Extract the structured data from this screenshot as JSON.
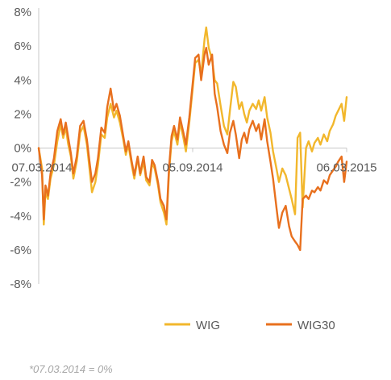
{
  "chart_data": {
    "type": "line",
    "title": "",
    "xlabel": "",
    "ylabel": "",
    "ylim": [
      -8,
      8
    ],
    "yticks": [
      -8,
      -6,
      -4,
      -2,
      0,
      2,
      4,
      6,
      8
    ],
    "ytick_format": "%",
    "x_range": [
      "2014-03-07",
      "2015-03-06"
    ],
    "xticks": [
      "07.03.2014",
      "05.09.2014",
      "06.03.2015"
    ],
    "grid": false,
    "legend": "bottom",
    "colors": {
      "WIG": "#f2b72c",
      "WIG30": "#e8701e",
      "axis": "#c8c8c8"
    },
    "series": [
      {
        "name": "WIG",
        "points": [
          [
            "2014-03-07",
            0.0
          ],
          [
            "2014-03-11",
            -1.2
          ],
          [
            "2014-03-13",
            -4.5
          ],
          [
            "2014-03-15",
            -2.6
          ],
          [
            "2014-03-18",
            -3.0
          ],
          [
            "2014-03-21",
            -1.8
          ],
          [
            "2014-03-25",
            -1.0
          ],
          [
            "2014-03-29",
            0.4
          ],
          [
            "2014-04-02",
            1.4
          ],
          [
            "2014-04-05",
            0.6
          ],
          [
            "2014-04-08",
            1.2
          ],
          [
            "2014-04-11",
            0.2
          ],
          [
            "2014-04-14",
            -0.5
          ],
          [
            "2014-04-17",
            -1.8
          ],
          [
            "2014-04-21",
            -0.8
          ],
          [
            "2014-04-25",
            0.9
          ],
          [
            "2014-04-29",
            1.3
          ],
          [
            "2014-05-03",
            0.2
          ],
          [
            "2014-05-06",
            -1.2
          ],
          [
            "2014-05-09",
            -2.6
          ],
          [
            "2014-05-13",
            -2.0
          ],
          [
            "2014-05-16",
            -1.0
          ],
          [
            "2014-05-20",
            0.8
          ],
          [
            "2014-05-24",
            0.6
          ],
          [
            "2014-05-27",
            1.8
          ],
          [
            "2014-05-31",
            2.6
          ],
          [
            "2014-06-04",
            1.8
          ],
          [
            "2014-06-07",
            2.2
          ],
          [
            "2014-06-11",
            1.5
          ],
          [
            "2014-06-15",
            0.5
          ],
          [
            "2014-06-18",
            -0.4
          ],
          [
            "2014-06-21",
            0.2
          ],
          [
            "2014-06-25",
            -1.0
          ],
          [
            "2014-06-28",
            -1.8
          ],
          [
            "2014-07-02",
            -0.6
          ],
          [
            "2014-07-05",
            -1.6
          ],
          [
            "2014-07-09",
            -0.8
          ],
          [
            "2014-07-12",
            -1.9
          ],
          [
            "2014-07-16",
            -2.2
          ],
          [
            "2014-07-19",
            -0.9
          ],
          [
            "2014-07-22",
            -1.2
          ],
          [
            "2014-07-26",
            -2.2
          ],
          [
            "2014-07-29",
            -3.2
          ],
          [
            "2014-08-02",
            -3.8
          ],
          [
            "2014-08-05",
            -4.5
          ],
          [
            "2014-08-08",
            -1.5
          ],
          [
            "2014-08-11",
            0.4
          ],
          [
            "2014-08-14",
            1.0
          ],
          [
            "2014-08-18",
            0.2
          ],
          [
            "2014-08-21",
            1.5
          ],
          [
            "2014-08-25",
            0.6
          ],
          [
            "2014-08-28",
            -0.2
          ],
          [
            "2014-09-01",
            1.5
          ],
          [
            "2014-09-05",
            3.5
          ],
          [
            "2014-09-08",
            5.0
          ],
          [
            "2014-09-12",
            5.2
          ],
          [
            "2014-09-15",
            4.3
          ],
          [
            "2014-09-19",
            6.4
          ],
          [
            "2014-09-21",
            7.1
          ],
          [
            "2014-09-24",
            5.9
          ],
          [
            "2014-09-28",
            5.2
          ],
          [
            "2014-10-01",
            4.0
          ],
          [
            "2014-10-04",
            3.8
          ],
          [
            "2014-10-08",
            2.5
          ],
          [
            "2014-10-12",
            1.3
          ],
          [
            "2014-10-16",
            0.8
          ],
          [
            "2014-10-19",
            2.2
          ],
          [
            "2014-10-23",
            3.9
          ],
          [
            "2014-10-26",
            3.6
          ],
          [
            "2014-10-30",
            2.3
          ],
          [
            "2014-11-02",
            2.7
          ],
          [
            "2014-11-05",
            2.0
          ],
          [
            "2014-11-08",
            1.5
          ],
          [
            "2014-11-11",
            2.2
          ],
          [
            "2014-11-15",
            2.6
          ],
          [
            "2014-11-19",
            2.3
          ],
          [
            "2014-11-22",
            2.8
          ],
          [
            "2014-11-25",
            2.2
          ],
          [
            "2014-11-29",
            3.0
          ],
          [
            "2014-12-02",
            1.8
          ],
          [
            "2014-12-06",
            0.9
          ],
          [
            "2014-12-09",
            -0.2
          ],
          [
            "2014-12-13",
            -1.2
          ],
          [
            "2014-12-16",
            -2.0
          ],
          [
            "2014-12-20",
            -1.2
          ],
          [
            "2014-12-24",
            -1.6
          ],
          [
            "2014-12-28",
            -2.4
          ],
          [
            "2014-12-31",
            -3.0
          ],
          [
            "2015-01-04",
            -3.9
          ],
          [
            "2015-01-07",
            0.6
          ],
          [
            "2015-01-10",
            0.9
          ],
          [
            "2015-01-13",
            -3.5
          ],
          [
            "2015-01-17",
            0.0
          ],
          [
            "2015-01-20",
            0.4
          ],
          [
            "2015-01-24",
            -0.2
          ],
          [
            "2015-01-27",
            0.3
          ],
          [
            "2015-01-31",
            0.6
          ],
          [
            "2015-02-03",
            0.2
          ],
          [
            "2015-02-07",
            0.8
          ],
          [
            "2015-02-11",
            0.4
          ],
          [
            "2015-02-14",
            1.0
          ],
          [
            "2015-02-18",
            1.4
          ],
          [
            "2015-02-21",
            1.9
          ],
          [
            "2015-02-24",
            2.2
          ],
          [
            "2015-02-28",
            2.6
          ],
          [
            "2015-03-03",
            1.6
          ],
          [
            "2015-03-06",
            3.0
          ]
        ]
      },
      {
        "name": "WIG30",
        "points": [
          [
            "2014-03-07",
            0.0
          ],
          [
            "2014-03-11",
            -1.6
          ],
          [
            "2014-03-13",
            -4.2
          ],
          [
            "2014-03-15",
            -2.2
          ],
          [
            "2014-03-18",
            -2.8
          ],
          [
            "2014-03-21",
            -1.5
          ],
          [
            "2014-03-25",
            -0.6
          ],
          [
            "2014-03-29",
            1.0
          ],
          [
            "2014-04-02",
            1.7
          ],
          [
            "2014-04-05",
            0.8
          ],
          [
            "2014-04-08",
            1.5
          ],
          [
            "2014-04-11",
            0.6
          ],
          [
            "2014-04-14",
            -0.3
          ],
          [
            "2014-04-17",
            -1.5
          ],
          [
            "2014-04-21",
            -0.5
          ],
          [
            "2014-04-25",
            1.3
          ],
          [
            "2014-04-29",
            1.6
          ],
          [
            "2014-05-03",
            0.5
          ],
          [
            "2014-05-06",
            -0.8
          ],
          [
            "2014-05-09",
            -2.0
          ],
          [
            "2014-05-13",
            -1.5
          ],
          [
            "2014-05-16",
            -0.6
          ],
          [
            "2014-05-20",
            1.2
          ],
          [
            "2014-05-24",
            0.9
          ],
          [
            "2014-05-27",
            2.4
          ],
          [
            "2014-05-31",
            3.5
          ],
          [
            "2014-06-04",
            2.2
          ],
          [
            "2014-06-07",
            2.6
          ],
          [
            "2014-06-11",
            1.9
          ],
          [
            "2014-06-15",
            0.7
          ],
          [
            "2014-06-18",
            -0.2
          ],
          [
            "2014-06-21",
            0.4
          ],
          [
            "2014-06-25",
            -0.8
          ],
          [
            "2014-06-28",
            -1.6
          ],
          [
            "2014-07-02",
            -0.5
          ],
          [
            "2014-07-05",
            -1.5
          ],
          [
            "2014-07-09",
            -0.5
          ],
          [
            "2014-07-12",
            -1.7
          ],
          [
            "2014-07-16",
            -2.0
          ],
          [
            "2014-07-19",
            -0.7
          ],
          [
            "2014-07-22",
            -1.0
          ],
          [
            "2014-07-26",
            -2.0
          ],
          [
            "2014-07-29",
            -3.0
          ],
          [
            "2014-08-02",
            -3.4
          ],
          [
            "2014-08-05",
            -4.2
          ],
          [
            "2014-08-08",
            -1.2
          ],
          [
            "2014-08-11",
            0.7
          ],
          [
            "2014-08-14",
            1.3
          ],
          [
            "2014-08-18",
            0.5
          ],
          [
            "2014-08-21",
            1.8
          ],
          [
            "2014-08-25",
            0.9
          ],
          [
            "2014-08-28",
            0.2
          ],
          [
            "2014-09-01",
            1.8
          ],
          [
            "2014-09-05",
            3.8
          ],
          [
            "2014-09-08",
            5.3
          ],
          [
            "2014-09-12",
            5.5
          ],
          [
            "2014-09-15",
            4.0
          ],
          [
            "2014-09-19",
            5.5
          ],
          [
            "2014-09-21",
            5.9
          ],
          [
            "2014-09-24",
            4.9
          ],
          [
            "2014-09-28",
            5.5
          ],
          [
            "2014-10-01",
            3.2
          ],
          [
            "2014-10-04",
            2.4
          ],
          [
            "2014-10-08",
            1.0
          ],
          [
            "2014-10-12",
            0.2
          ],
          [
            "2014-10-16",
            -0.3
          ],
          [
            "2014-10-19",
            0.9
          ],
          [
            "2014-10-23",
            1.6
          ],
          [
            "2014-10-26",
            0.8
          ],
          [
            "2014-10-30",
            -0.6
          ],
          [
            "2014-11-02",
            0.5
          ],
          [
            "2014-11-05",
            0.9
          ],
          [
            "2014-11-08",
            0.3
          ],
          [
            "2014-11-11",
            1.1
          ],
          [
            "2014-11-15",
            1.6
          ],
          [
            "2014-11-19",
            1.0
          ],
          [
            "2014-11-22",
            1.4
          ],
          [
            "2014-11-25",
            0.5
          ],
          [
            "2014-11-29",
            1.7
          ],
          [
            "2014-12-02",
            0.4
          ],
          [
            "2014-12-06",
            -0.8
          ],
          [
            "2014-12-09",
            -1.8
          ],
          [
            "2014-12-13",
            -3.5
          ],
          [
            "2014-12-16",
            -4.7
          ],
          [
            "2014-12-20",
            -3.8
          ],
          [
            "2014-12-24",
            -3.4
          ],
          [
            "2014-12-28",
            -4.6
          ],
          [
            "2014-12-31",
            -5.2
          ],
          [
            "2015-01-04",
            -5.5
          ],
          [
            "2015-01-07",
            -5.7
          ],
          [
            "2015-01-10",
            -6.0
          ],
          [
            "2015-01-13",
            -3.0
          ],
          [
            "2015-01-17",
            -2.8
          ],
          [
            "2015-01-20",
            -3.0
          ],
          [
            "2015-01-24",
            -2.5
          ],
          [
            "2015-01-27",
            -2.6
          ],
          [
            "2015-01-31",
            -2.3
          ],
          [
            "2015-02-03",
            -2.5
          ],
          [
            "2015-02-07",
            -1.9
          ],
          [
            "2015-02-11",
            -2.1
          ],
          [
            "2015-02-14",
            -1.6
          ],
          [
            "2015-02-18",
            -1.3
          ],
          [
            "2015-02-21",
            -1.1
          ],
          [
            "2015-02-24",
            -0.8
          ],
          [
            "2015-02-28",
            -0.5
          ],
          [
            "2015-03-03",
            -2.0
          ],
          [
            "2015-03-06",
            -0.8
          ]
        ]
      }
    ],
    "footnote": "*07.03.2014 = 0%"
  }
}
